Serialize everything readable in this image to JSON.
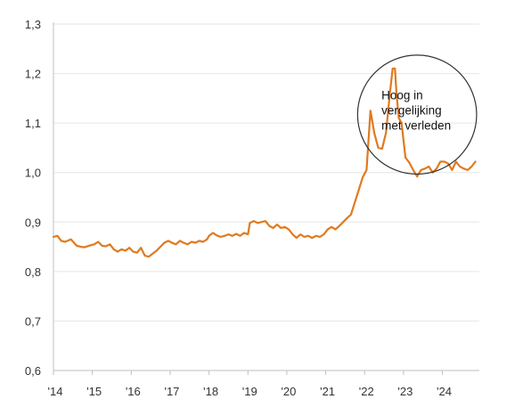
{
  "chart_data": {
    "type": "line",
    "title": "",
    "xlabel": "",
    "ylabel": "",
    "ylim": [
      0.6,
      1.3
    ],
    "xlim": [
      2014.0,
      2024.95
    ],
    "grid": {
      "horizontal": true,
      "vertical": false
    },
    "legend": "none",
    "colors": {
      "line": "#E07A1F",
      "grid": "#E6E6E6",
      "axis": "#BFBFBF",
      "annotation_circle": "#333333"
    },
    "y_ticks": [
      {
        "value": 0.6,
        "label": "0,6"
      },
      {
        "value": 0.7,
        "label": "0,7"
      },
      {
        "value": 0.8,
        "label": "0,8"
      },
      {
        "value": 0.9,
        "label": "0,9"
      },
      {
        "value": 1.0,
        "label": "1,0"
      },
      {
        "value": 1.1,
        "label": "1,1"
      },
      {
        "value": 1.2,
        "label": "1,2"
      },
      {
        "value": 1.3,
        "label": "1,3"
      }
    ],
    "x_ticks": [
      {
        "value": 2014,
        "label": "'14"
      },
      {
        "value": 2015,
        "label": "'15"
      },
      {
        "value": 2016,
        "label": "'16"
      },
      {
        "value": 2017,
        "label": "'17"
      },
      {
        "value": 2018,
        "label": "'18"
      },
      {
        "value": 2019,
        "label": "'19"
      },
      {
        "value": 2020,
        "label": "'20"
      },
      {
        "value": 2021,
        "label": "'21"
      },
      {
        "value": 2022,
        "label": "'22"
      },
      {
        "value": 2023,
        "label": "'23"
      },
      {
        "value": 2024,
        "label": "'24"
      }
    ],
    "series": [
      {
        "x": [
          2014.0,
          2014.1,
          2014.2,
          2014.3,
          2014.45,
          2014.6,
          2014.7,
          2014.8,
          2014.95,
          2015.05,
          2015.15,
          2015.25,
          2015.35,
          2015.45,
          2015.55,
          2015.65,
          2015.75,
          2015.85,
          2015.95,
          2016.05,
          2016.15,
          2016.25,
          2016.35,
          2016.45,
          2016.55,
          2016.65,
          2016.75,
          2016.85,
          2016.95,
          2017.05,
          2017.15,
          2017.25,
          2017.35,
          2017.45,
          2017.55,
          2017.65,
          2017.75,
          2017.85,
          2017.95,
          2018.0,
          2018.1,
          2018.2,
          2018.3,
          2018.4,
          2018.5,
          2018.6,
          2018.7,
          2018.8,
          2018.9,
          2019.0,
          2019.05,
          2019.15,
          2019.25,
          2019.35,
          2019.45,
          2019.55,
          2019.65,
          2019.75,
          2019.85,
          2019.95,
          2020.05,
          2020.15,
          2020.25,
          2020.35,
          2020.45,
          2020.55,
          2020.65,
          2020.75,
          2020.85,
          2020.95,
          2021.05,
          2021.15,
          2021.25,
          2021.35,
          2021.45,
          2021.55,
          2021.65,
          2021.75,
          2021.85,
          2021.95,
          2022.05,
          2022.15,
          2022.25,
          2022.35,
          2022.45,
          2022.55,
          2022.65,
          2022.72,
          2022.78,
          2022.82,
          2022.88,
          2022.95,
          2023.05,
          2023.15,
          2023.25,
          2023.35,
          2023.45,
          2023.55,
          2023.65,
          2023.75,
          2023.85,
          2023.95,
          2024.05,
          2024.15,
          2024.25,
          2024.35,
          2024.45,
          2024.55,
          2024.65,
          2024.75,
          2024.85
        ],
        "values": [
          0.87,
          0.872,
          0.862,
          0.86,
          0.865,
          0.852,
          0.85,
          0.849,
          0.853,
          0.855,
          0.86,
          0.852,
          0.851,
          0.855,
          0.845,
          0.84,
          0.845,
          0.842,
          0.848,
          0.84,
          0.838,
          0.848,
          0.832,
          0.83,
          0.836,
          0.842,
          0.85,
          0.858,
          0.862,
          0.858,
          0.855,
          0.862,
          0.858,
          0.855,
          0.86,
          0.858,
          0.862,
          0.86,
          0.865,
          0.872,
          0.878,
          0.873,
          0.87,
          0.872,
          0.875,
          0.872,
          0.876,
          0.872,
          0.878,
          0.875,
          0.898,
          0.902,
          0.898,
          0.9,
          0.902,
          0.892,
          0.888,
          0.895,
          0.888,
          0.89,
          0.885,
          0.875,
          0.868,
          0.875,
          0.87,
          0.872,
          0.868,
          0.872,
          0.87,
          0.875,
          0.885,
          0.89,
          0.885,
          0.892,
          0.9,
          0.908,
          0.915,
          0.94,
          0.965,
          0.99,
          1.005,
          1.125,
          1.08,
          1.05,
          1.048,
          1.08,
          1.16,
          1.21,
          1.21,
          1.16,
          1.11,
          1.1,
          1.03,
          1.02,
          1.005,
          0.992,
          1.005,
          1.008,
          1.012,
          1.0,
          1.008,
          1.022,
          1.022,
          1.018,
          1.005,
          1.022,
          1.012,
          1.008,
          1.005,
          1.012,
          1.022
        ]
      }
    ],
    "annotations": [
      {
        "text_lines": [
          "Hoog in",
          "vergelijking",
          "met verleden"
        ],
        "shape": "circle",
        "center": {
          "x": 2023.35,
          "y": 1.117
        },
        "radius_x_years": 1.53
      }
    ]
  }
}
